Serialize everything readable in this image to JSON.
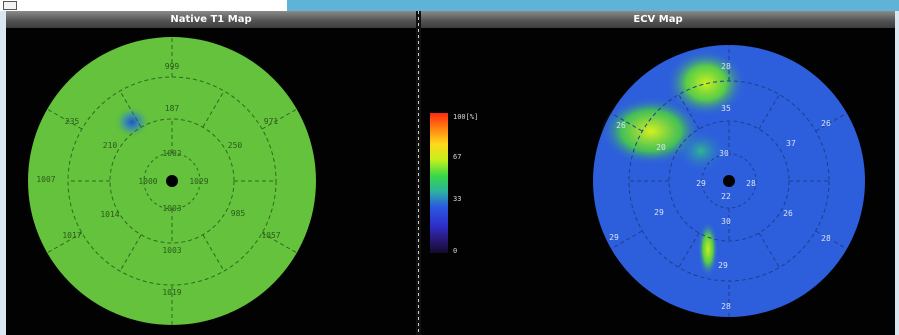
{
  "left_panel": {
    "title": "Native T1 Map",
    "segment_labels": [
      "999",
      "187",
      "971",
      "250",
      "1057",
      "985",
      "235",
      "210",
      "1002",
      "1000",
      "1029",
      "1014",
      "1003",
      "1017",
      "1003",
      "1019",
      "1007"
    ]
  },
  "right_panel": {
    "title": "ECV Map",
    "segment_labels": [
      "28",
      "26",
      "28",
      "28",
      "29",
      "29",
      "37",
      "29",
      "26",
      "28",
      "29",
      "20",
      "35",
      "30",
      "30",
      "22",
      "26"
    ]
  },
  "color_scale": {
    "labels": {
      "max": "100[%]",
      "upper": "67",
      "mid": "33",
      "min": "0"
    },
    "colors": [
      "#ff2a10",
      "#ff7a10",
      "#ffd81a",
      "#c8f01c",
      "#38d848",
      "#2cb2a0",
      "#2a5adf",
      "#2f2fcf",
      "#281a78",
      "#140a30"
    ]
  },
  "colors": {
    "t1_base": "#64c23c",
    "ecv_base": "#2d5fdc",
    "top_accent": "#5fb3d6"
  }
}
